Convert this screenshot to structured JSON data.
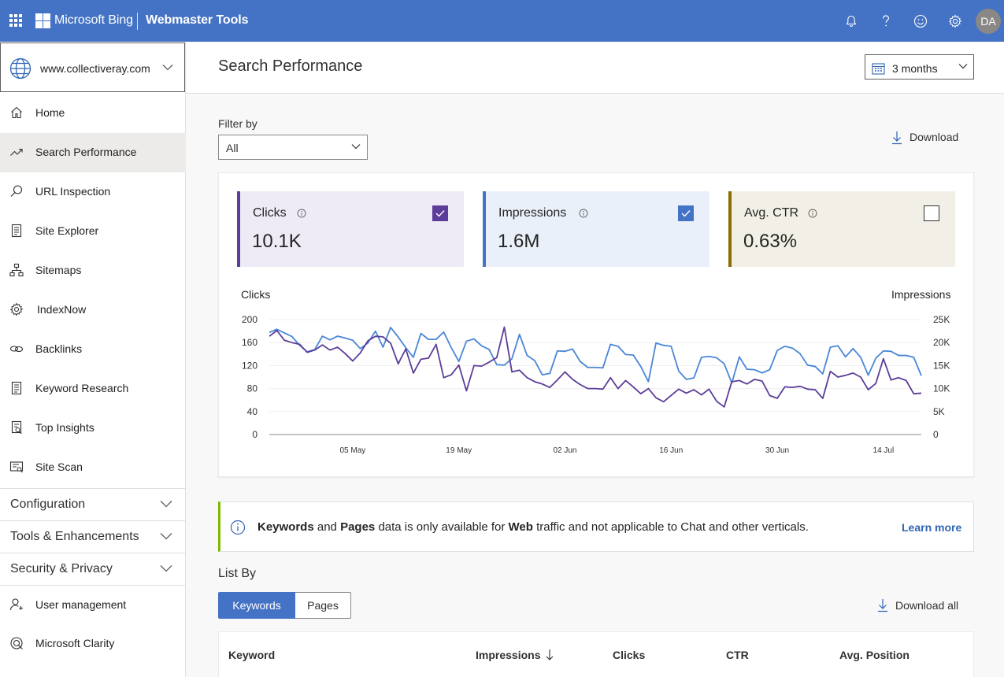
{
  "header": {
    "brand": "Microsoft Bing",
    "product": "Webmaster Tools",
    "icons": [
      "apps-waffle-icon",
      "notifications-bell-icon",
      "help-icon",
      "feedback-smiley-icon",
      "settings-gear-icon"
    ],
    "avatar_initials": "DA",
    "brand_color": "#4472c4"
  },
  "sidebar": {
    "site": "www.collectiveray.com",
    "items": [
      {
        "label": "Home",
        "icon": "home-icon"
      },
      {
        "label": "Search Performance",
        "icon": "trend-icon",
        "active": true
      },
      {
        "label": "URL Inspection",
        "icon": "search-icon"
      },
      {
        "label": "Site Explorer",
        "icon": "document-icon"
      },
      {
        "label": "Sitemaps",
        "icon": "sitemap-icon"
      },
      {
        "label": "IndexNow",
        "icon": "gear-icon"
      },
      {
        "label": "Backlinks",
        "icon": "link-icon"
      },
      {
        "label": "Keyword Research",
        "icon": "document-icon"
      },
      {
        "label": "Top Insights",
        "icon": "insights-icon"
      },
      {
        "label": "Site Scan",
        "icon": "scan-icon"
      }
    ],
    "groups": [
      {
        "label": "Configuration"
      },
      {
        "label": "Tools & Enhancements"
      },
      {
        "label": "Security & Privacy"
      }
    ],
    "bottom_items": [
      {
        "label": "User management",
        "icon": "user-icon"
      },
      {
        "label": "Microsoft Clarity",
        "icon": "clarity-icon"
      }
    ]
  },
  "main": {
    "title": "Search Performance",
    "date_range": "3 months",
    "filter_label": "Filter by",
    "filter_value": "All",
    "download_label": "Download",
    "metrics": [
      {
        "label": "Clicks",
        "value": "10.1K",
        "checked": true,
        "color": "#5c3d99",
        "bg": "#efebf6"
      },
      {
        "label": "Impressions",
        "value": "1.6M",
        "checked": true,
        "color": "#4472c4",
        "bg": "#eaf0fa"
      },
      {
        "label": "Avg. CTR",
        "value": "0.63%",
        "checked": false,
        "color": "#8a6d00",
        "bg": "#f2efe6"
      }
    ],
    "notice": {
      "w1": "Keywords",
      "t1": " and ",
      "w2": "Pages",
      "t2": " data is only available for ",
      "w3": "Web",
      "t3": " traffic and not applicable to Chat and other verticals.",
      "link": "Learn more"
    },
    "list_by_label": "List By",
    "list_tabs": [
      "Keywords",
      "Pages"
    ],
    "download_all_label": "Download all",
    "table_columns": [
      "Keyword",
      "Impressions",
      "Clicks",
      "CTR",
      "Avg. Position"
    ]
  },
  "chart_data": {
    "type": "line",
    "ylabel": "Clicks",
    "y2label": "Impressions",
    "ylim": [
      0,
      200
    ],
    "y_ticks": [
      "200",
      "160",
      "120",
      "80",
      "40",
      "0"
    ],
    "y2lim": [
      0,
      25000
    ],
    "y2_ticks": [
      "25K",
      "20K",
      "15K",
      "10K",
      "5K",
      "0"
    ],
    "x_ticks": [
      "05 May",
      "19 May",
      "02 Jun",
      "16 Jun",
      "30 Jun",
      "14 Jul"
    ],
    "x_tick_index": [
      11,
      25,
      39,
      53,
      67,
      81
    ],
    "series": [
      {
        "name": "Clicks",
        "color": "#5c3d99",
        "values": [
          171,
          181,
          164,
          160,
          157,
          143,
          147,
          156,
          147,
          152,
          141,
          128,
          142,
          163,
          171,
          170,
          159,
          123,
          149,
          107,
          131,
          133,
          157,
          99,
          104,
          121,
          76,
          120,
          119,
          126,
          134,
          187,
          109,
          112,
          99,
          92,
          88,
          82,
          95,
          109,
          96,
          87,
          80,
          80,
          79,
          99,
          80,
          94,
          83,
          71,
          80,
          64,
          57,
          68,
          79,
          72,
          78,
          69,
          79,
          58,
          48,
          92,
          94,
          88,
          96,
          93,
          68,
          63,
          83,
          82,
          84,
          79,
          78,
          63,
          110,
          100,
          103,
          107,
          100,
          78,
          89,
          132,
          95,
          99,
          94,
          71,
          72
        ]
      },
      {
        "name": "Impressions",
        "color": "#4a86d8",
        "values": [
          22200,
          22900,
          22100,
          21300,
          19400,
          18000,
          18500,
          21400,
          20600,
          21400,
          21000,
          20500,
          18700,
          19900,
          22500,
          19000,
          23300,
          21200,
          18900,
          16800,
          22000,
          20700,
          20700,
          22300,
          18900,
          15900,
          20300,
          20800,
          19300,
          18500,
          15200,
          15100,
          16500,
          21800,
          17200,
          16100,
          13000,
          13300,
          18200,
          18100,
          18600,
          15900,
          14600,
          14600,
          14500,
          19600,
          19200,
          17400,
          17300,
          14800,
          11500,
          19900,
          19400,
          19200,
          13800,
          12000,
          12300,
          16800,
          17000,
          16700,
          15400,
          11200,
          16900,
          14200,
          14100,
          13400,
          14100,
          18300,
          19200,
          18800,
          17600,
          15100,
          14800,
          13200,
          19000,
          19300,
          16900,
          18700,
          16800,
          12900,
          16600,
          18200,
          18100,
          17200,
          17200,
          16800,
          12800
        ]
      }
    ],
    "grid": true,
    "legend": "none"
  }
}
